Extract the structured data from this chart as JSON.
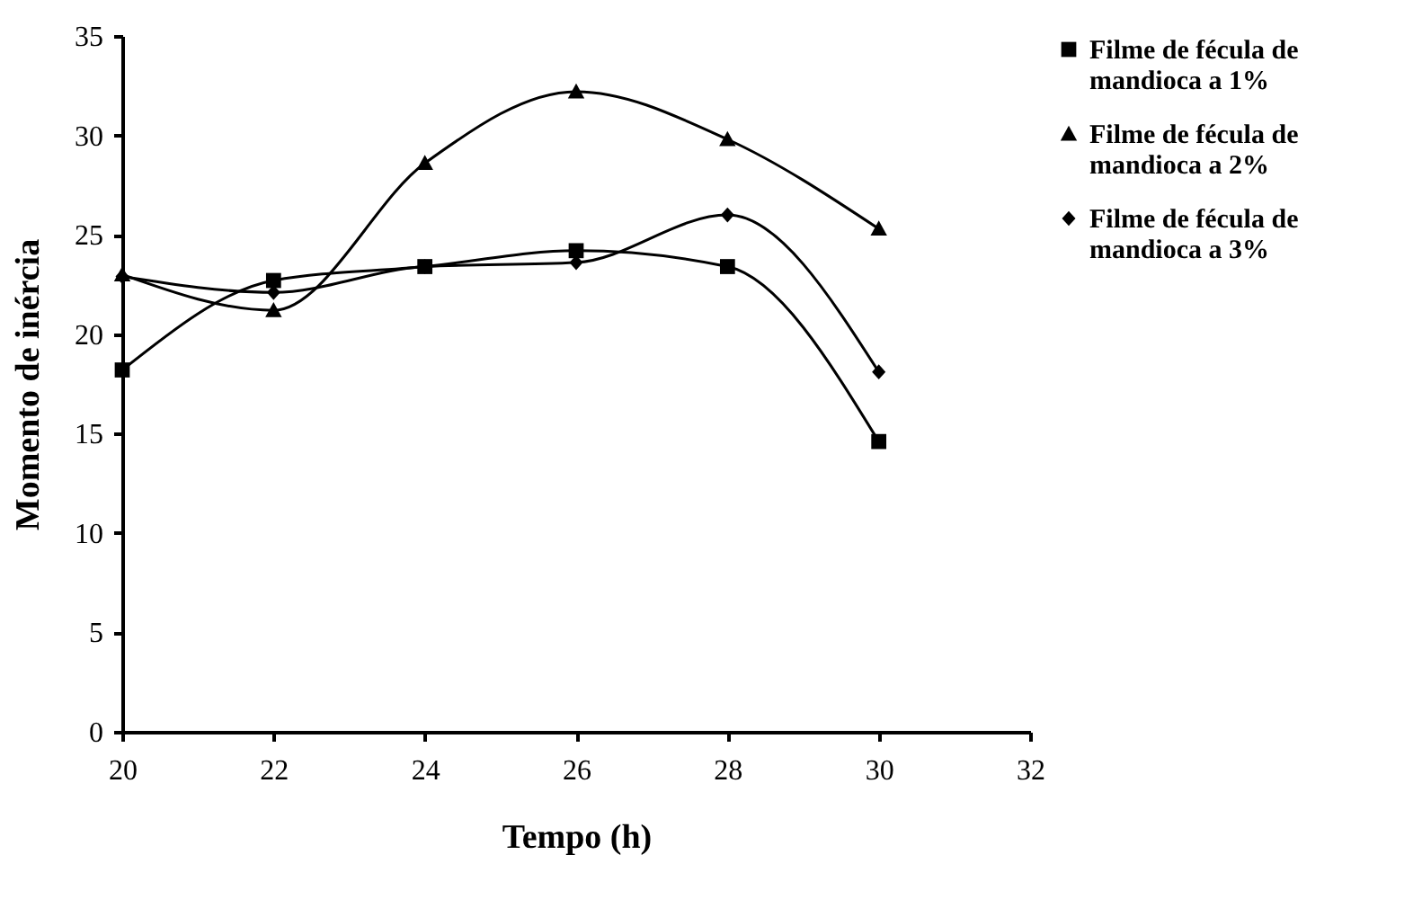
{
  "chart_data": {
    "type": "line",
    "xlabel": "Tempo (h)",
    "ylabel": "Momento de inércia",
    "x": [
      20,
      22,
      24,
      26,
      28,
      30
    ],
    "xlim": [
      20,
      32
    ],
    "xticks": [
      20,
      22,
      24,
      26,
      28,
      30,
      32
    ],
    "ylim": [
      0,
      35
    ],
    "yticks": [
      0,
      5,
      10,
      15,
      20,
      25,
      30,
      35
    ],
    "grid": false,
    "legend": "right",
    "series": [
      {
        "name": "Filme de fécula de mandioca a 1%",
        "color": "#000000",
        "marker": "square",
        "values": [
          18.2,
          22.7,
          23.4,
          24.2,
          23.4,
          14.6
        ]
      },
      {
        "name": "Filme de fécula de mandioca a 2%",
        "color": "#000000",
        "marker": "triangle",
        "values": [
          23.0,
          21.2,
          28.6,
          32.2,
          29.8,
          25.3
        ]
      },
      {
        "name": "Filme de fécula de mandioca a 3%",
        "color": "#000000",
        "marker": "diamond",
        "values": [
          22.9,
          22.1,
          23.4,
          23.6,
          26.0,
          18.1
        ]
      }
    ]
  }
}
